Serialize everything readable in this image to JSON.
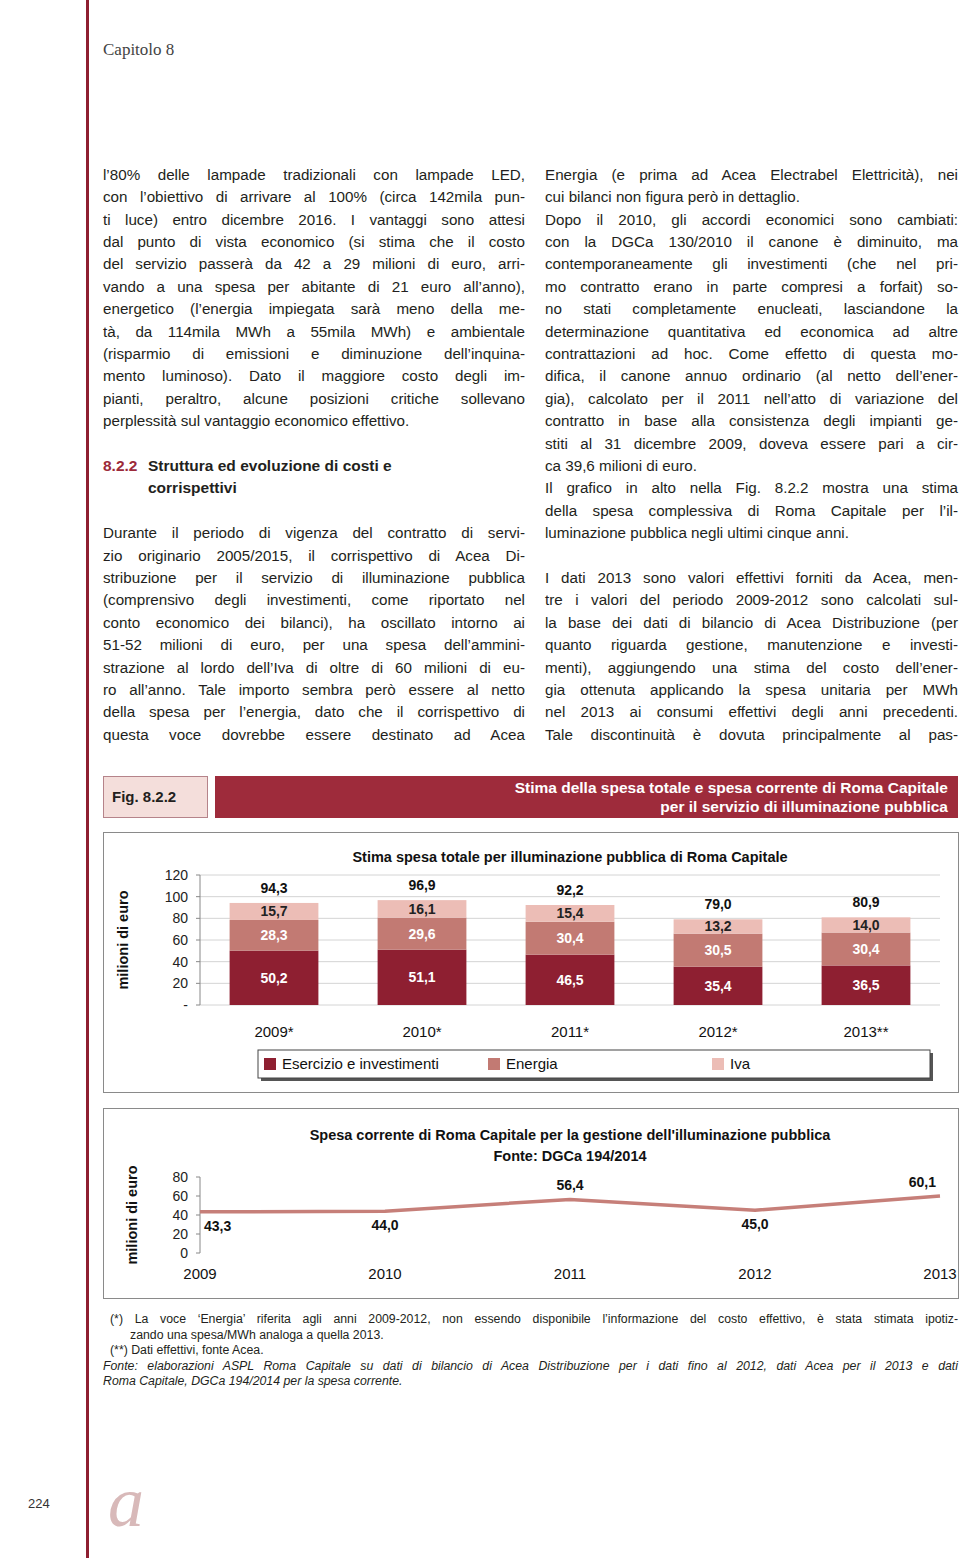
{
  "header": {
    "chapter": "Capitolo 8"
  },
  "left_column": {
    "paragraph_1": [
      "l’80% delle lampade tradizionali con lampade LED,",
      "con l’obiettivo di arrivare al 100% (circa 142mila pun-",
      "ti luce) entro dicembre 2016. I vantaggi sono attesi",
      "dal punto di vista economico (si stima che il costo",
      "del servizio passerà da 42 a 29 milioni di euro, arri-",
      "vando a una spesa per abitante di 21 euro all’anno),",
      "energetico (l’energia impiegata sarà meno della me-",
      "tà, da 114mila MWh a 55mila MWh) e ambientale",
      "(risparmio di emissioni e diminuzione dell’inquina-",
      "mento luminoso). Dato il maggiore costo degli im-",
      "pianti, peraltro, alcune posizioni critiche sollevano",
      "perplessità sul vantaggio economico effettivo."
    ],
    "heading": {
      "number": "8.2.2",
      "title": [
        "Struttura ed evoluzione di costi e",
        "corrispettivi"
      ]
    },
    "paragraph_2": [
      "Durante il periodo di vigenza del contratto di servi-",
      "zio originario 2005/2015, il corrispettivo di Acea Di-",
      "stribuzione per il servizio di illuminazione pubblica",
      "(comprensivo degli investimenti, come riportato nel",
      "conto economico dei bilanci), ha oscillato intorno ai",
      "51-52 milioni di euro, per una spesa dell’ammini-",
      "strazione al lordo dell’Iva di oltre di 60 milioni di eu-",
      "ro all’anno. Tale importo sembra però essere al netto",
      "della spesa per l’energia, dato che il corrispettivo di",
      "questa voce dovrebbe essere destinato ad Acea"
    ]
  },
  "right_column": {
    "paragraphs": [
      [
        "Energia (e prima ad Acea Electrabel Elettricità), nei",
        "cui bilanci non figura però in dettaglio."
      ],
      [
        "Dopo il 2010, gli accordi economici sono cambiati:",
        "con la DGCa 130/2010 il canone è diminuito, ma",
        "contemporaneamente gli investimenti (che nel pri-",
        "mo contratto erano in parte compresi a forfait) so-",
        "no stati completamente enucleati, lasciandone la",
        "determinazione quantitativa ed economica ad altre",
        "contrattazioni ad hoc. Come effetto di questa mo-",
        "difica, il canone annuo ordinario (al netto dell’ener-",
        "gia), calcolato per il 2011 nell’atto di variazione del",
        "contratto in base alla consistenza degli impianti ge-",
        "stiti al 31 dicembre 2009, doveva essere pari a cir-",
        "ca 39,6 milioni di euro."
      ],
      [
        "Il grafico in alto nella Fig. 8.2.2 mostra una stima",
        "della spesa complessiva di Roma Capitale per l’il-",
        "luminazione pubblica negli ultimi cinque anni."
      ],
      [
        "I dati 2013 sono valori effettivi forniti da Acea, men-",
        "tre i valori del periodo 2009-2012 sono calcolati sul-",
        "la base dei dati di bilancio di Acea Distribuzione (per",
        "quanto riguarda gestione, manutenzione e investi-",
        "menti), aggiungendo una stima del costo dell’ener-",
        "gia ottenuta applicando la spesa unitaria per MWh",
        "nel 2013 ai consumi effettivi degli anni precedenti.",
        "Tale discontinuità è dovuta principalmente al pas-"
      ]
    ]
  },
  "figure": {
    "label": "Fig. 8.2.2",
    "title": [
      "Stima della spesa totale e spesa corrente di Roma Capitale",
      "per il servizio di illuminazione pubblica"
    ]
  },
  "chart_data": [
    {
      "type": "bar",
      "stacked": true,
      "title": "Stima spesa totale per illuminazione pubblica di Roma Capitale",
      "y_label": "milioni di euro",
      "categories": [
        "2009*",
        "2010*",
        "2011*",
        "2012*",
        "2013**"
      ],
      "series": [
        {
          "name": "Esercizio e investimenti",
          "color": "#8e1f31",
          "values": [
            50.2,
            51.1,
            46.5,
            35.4,
            36.5
          ],
          "value_labels": [
            "50,2",
            "51,1",
            "46,5",
            "35,4",
            "36,5"
          ]
        },
        {
          "name": "Energia",
          "color": "#c27a73",
          "values": [
            28.3,
            29.6,
            30.4,
            30.5,
            30.4
          ],
          "value_labels": [
            "28,3",
            "29,6",
            "30,4",
            "30,5",
            "30,4"
          ]
        },
        {
          "name": "Iva",
          "color": "#ecbdb6",
          "values": [
            15.7,
            16.1,
            15.4,
            13.2,
            14.0
          ],
          "value_labels": [
            "15,7",
            "16,1",
            "15,4",
            "13,2",
            "14,0"
          ]
        }
      ],
      "totals": [
        94.3,
        96.9,
        92.2,
        79.0,
        80.9
      ],
      "total_labels": [
        "94,3",
        "96,9",
        "92,2",
        "79,0",
        "80,9"
      ],
      "ylim": [
        0,
        120
      ],
      "yticks": [
        {
          "value": 0,
          "label": "-"
        },
        20,
        40,
        60,
        80,
        100,
        120
      ],
      "grid": true,
      "legend": "bottom",
      "data_labels": true
    },
    {
      "type": "line",
      "title": "Spesa corrente di Roma Capitale per la gestione dell'illuminazione pubblica",
      "subtitle": "Fonte: DGCa 194/2014",
      "y_label": "milioni di euro",
      "categories": [
        "2009",
        "2010",
        "2011",
        "2012",
        "2013"
      ],
      "values": [
        43.3,
        44.0,
        56.4,
        45.0,
        60.1
      ],
      "value_labels": [
        "43,3",
        "44,0",
        "56,4",
        "45,0",
        "60,1"
      ],
      "color": "#c67f79",
      "ylim": [
        0,
        80
      ],
      "yticks": [
        0,
        20,
        40,
        60,
        80
      ],
      "grid": false,
      "data_labels": true
    }
  ],
  "notes": {
    "footnotes": [
      [
        "(*) La voce ‘Energia’ riferita agli anni 2009-2012, non essendo disponibile l’informazione del costo effettivo, è stata stimata ipotiz-",
        "zando una spesa/MWh analoga a quella 2013."
      ],
      [
        "(**) Dati effettivi, fonte Acea."
      ]
    ],
    "source": [
      "Fonte: elaborazioni ASPL Roma Capitale su dati di bilancio di Acea Distribuzione per i dati fino al 2012, dati Acea per il 2013 e dati",
      "Roma Capitale, DGCa 194/2014 per la spesa corrente."
    ]
  },
  "page_number": "224",
  "logo": "a"
}
